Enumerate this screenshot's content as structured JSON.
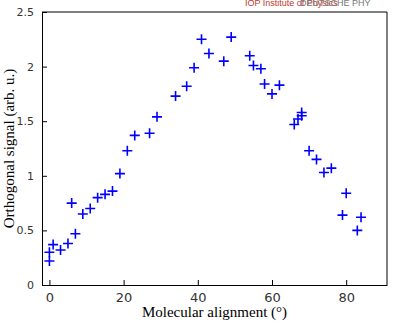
{
  "chart_data": {
    "type": "scatter",
    "annotations": [
      "IOP Institute of Physics",
      "DEUTSCHE PHY"
    ],
    "x_label": "Molecular alignment (°)",
    "y_label": "Orthogonal signal (arb. u.)",
    "x": [
      0,
      0,
      1,
      3,
      5,
      6,
      7,
      9,
      11,
      13,
      15,
      17,
      19,
      21,
      23,
      27,
      29,
      34,
      37,
      39,
      41,
      43,
      47,
      49,
      54,
      55,
      57,
      58,
      60,
      62,
      66,
      67,
      68,
      68,
      70,
      72,
      74,
      76,
      79,
      80,
      83,
      84
    ],
    "values": [
      0.22,
      0.3,
      0.37,
      0.32,
      0.38,
      0.75,
      0.47,
      0.65,
      0.7,
      0.8,
      0.83,
      0.86,
      1.02,
      1.23,
      1.37,
      1.39,
      1.54,
      1.73,
      1.82,
      1.99,
      2.25,
      2.12,
      2.05,
      2.27,
      2.1,
      2.01,
      1.98,
      1.84,
      1.75,
      1.83,
      1.47,
      1.52,
      1.58,
      1.55,
      1.23,
      1.15,
      1.03,
      1.07,
      0.64,
      0.84,
      0.5,
      0.62
    ],
    "color": "#0000ff",
    "marker": "plus",
    "xlim": [
      -2,
      91
    ],
    "xticks": [
      0,
      20,
      40,
      60,
      80
    ],
    "ylim": [
      0,
      2.5
    ],
    "yticks": [
      0,
      0.5,
      1,
      1.5,
      2,
      2.5
    ],
    "grid": false
  }
}
